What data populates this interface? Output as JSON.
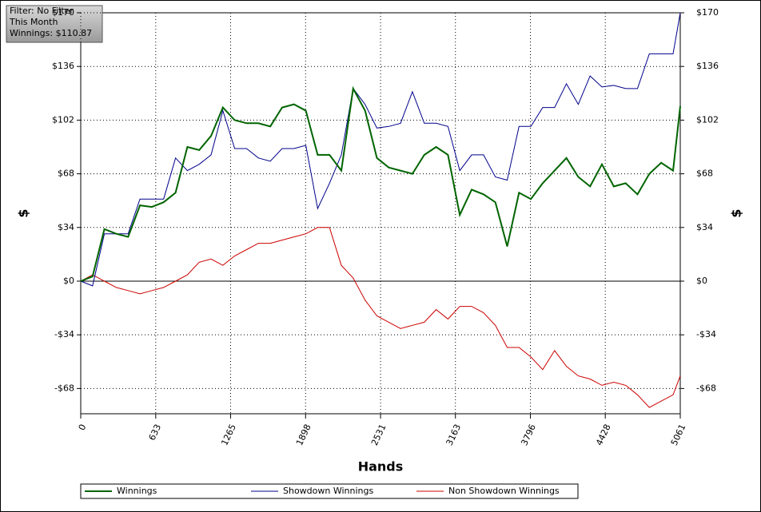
{
  "chart_data": {
    "type": "line",
    "annotations": [
      "Filter: No Filter",
      "This Month",
      "Winnings: $110.87"
    ],
    "x_label": "Hands",
    "y_label": "$",
    "y2_label": "$",
    "x": [
      0,
      100,
      200,
      300,
      400,
      500,
      600,
      700,
      800,
      900,
      1000,
      1100,
      1200,
      1300,
      1400,
      1500,
      1600,
      1700,
      1800,
      1900,
      2000,
      2100,
      2200,
      2300,
      2400,
      2500,
      2600,
      2700,
      2800,
      2900,
      3000,
      3100,
      3200,
      3300,
      3400,
      3500,
      3600,
      3700,
      3800,
      3900,
      4000,
      4100,
      4200,
      4300,
      4400,
      4500,
      4600,
      4700,
      4800,
      4900,
      5000,
      5061
    ],
    "series": [
      {
        "name": "Winnings",
        "color": "#006400",
        "width": 2,
        "values": [
          0,
          3,
          33,
          30,
          28,
          48,
          47,
          50,
          56,
          85,
          83,
          92,
          110,
          102,
          100,
          100,
          98,
          110,
          112,
          108,
          80,
          80,
          70,
          122,
          108,
          78,
          72,
          70,
          68,
          80,
          85,
          80,
          42,
          58,
          55,
          50,
          22,
          56,
          52,
          62,
          70,
          78,
          66,
          60,
          74,
          60,
          62,
          55,
          68,
          75,
          70,
          110.87
        ]
      },
      {
        "name": "Showdown Winnings",
        "color": "#00008b",
        "width": 1,
        "values": [
          0,
          -3,
          30,
          30,
          30,
          52,
          52,
          52,
          78,
          70,
          74,
          80,
          108,
          84,
          84,
          78,
          76,
          84,
          84,
          86,
          46,
          62,
          80,
          122,
          112,
          97,
          98,
          100,
          120,
          100,
          100,
          98,
          70,
          80,
          80,
          66,
          64,
          98,
          98,
          110,
          110,
          125,
          112,
          130,
          123,
          124,
          122,
          122,
          144,
          144,
          144,
          170
        ]
      },
      {
        "name": "Non Showdown Winnings",
        "color": "#cc0000",
        "width": 1,
        "values": [
          0,
          4,
          0,
          -4,
          -6,
          -8,
          -6,
          -4,
          0,
          4,
          12,
          14,
          10,
          16,
          20,
          24,
          24,
          26,
          28,
          30,
          34,
          34,
          10,
          2,
          -12,
          -22,
          -26,
          -30,
          -28,
          -26,
          -18,
          -24,
          -16,
          -16,
          -20,
          -28,
          -42,
          -42,
          -48,
          -56,
          -44,
          -54,
          -60,
          -62,
          -66,
          -64,
          -66,
          -72,
          -80,
          -76,
          -72,
          -60
        ]
      }
    ],
    "xlim": [
      0,
      5061
    ],
    "xticks": [
      0,
      633,
      1265,
      1898,
      2531,
      3163,
      3796,
      4428,
      5061
    ],
    "ylim": [
      -84,
      170
    ],
    "yticks": [
      {
        "value": 170,
        "label": "$170"
      },
      {
        "value": 136,
        "label": "$136"
      },
      {
        "value": 102,
        "label": "$102"
      },
      {
        "value": 68,
        "label": "$68"
      },
      {
        "value": 34,
        "label": "$34"
      },
      {
        "value": 0,
        "label": "$0"
      },
      {
        "value": -34,
        "label": "-$34"
      },
      {
        "value": -68,
        "label": "-$68"
      }
    ],
    "grid": true,
    "zero_line": true,
    "legend": "bottom"
  }
}
